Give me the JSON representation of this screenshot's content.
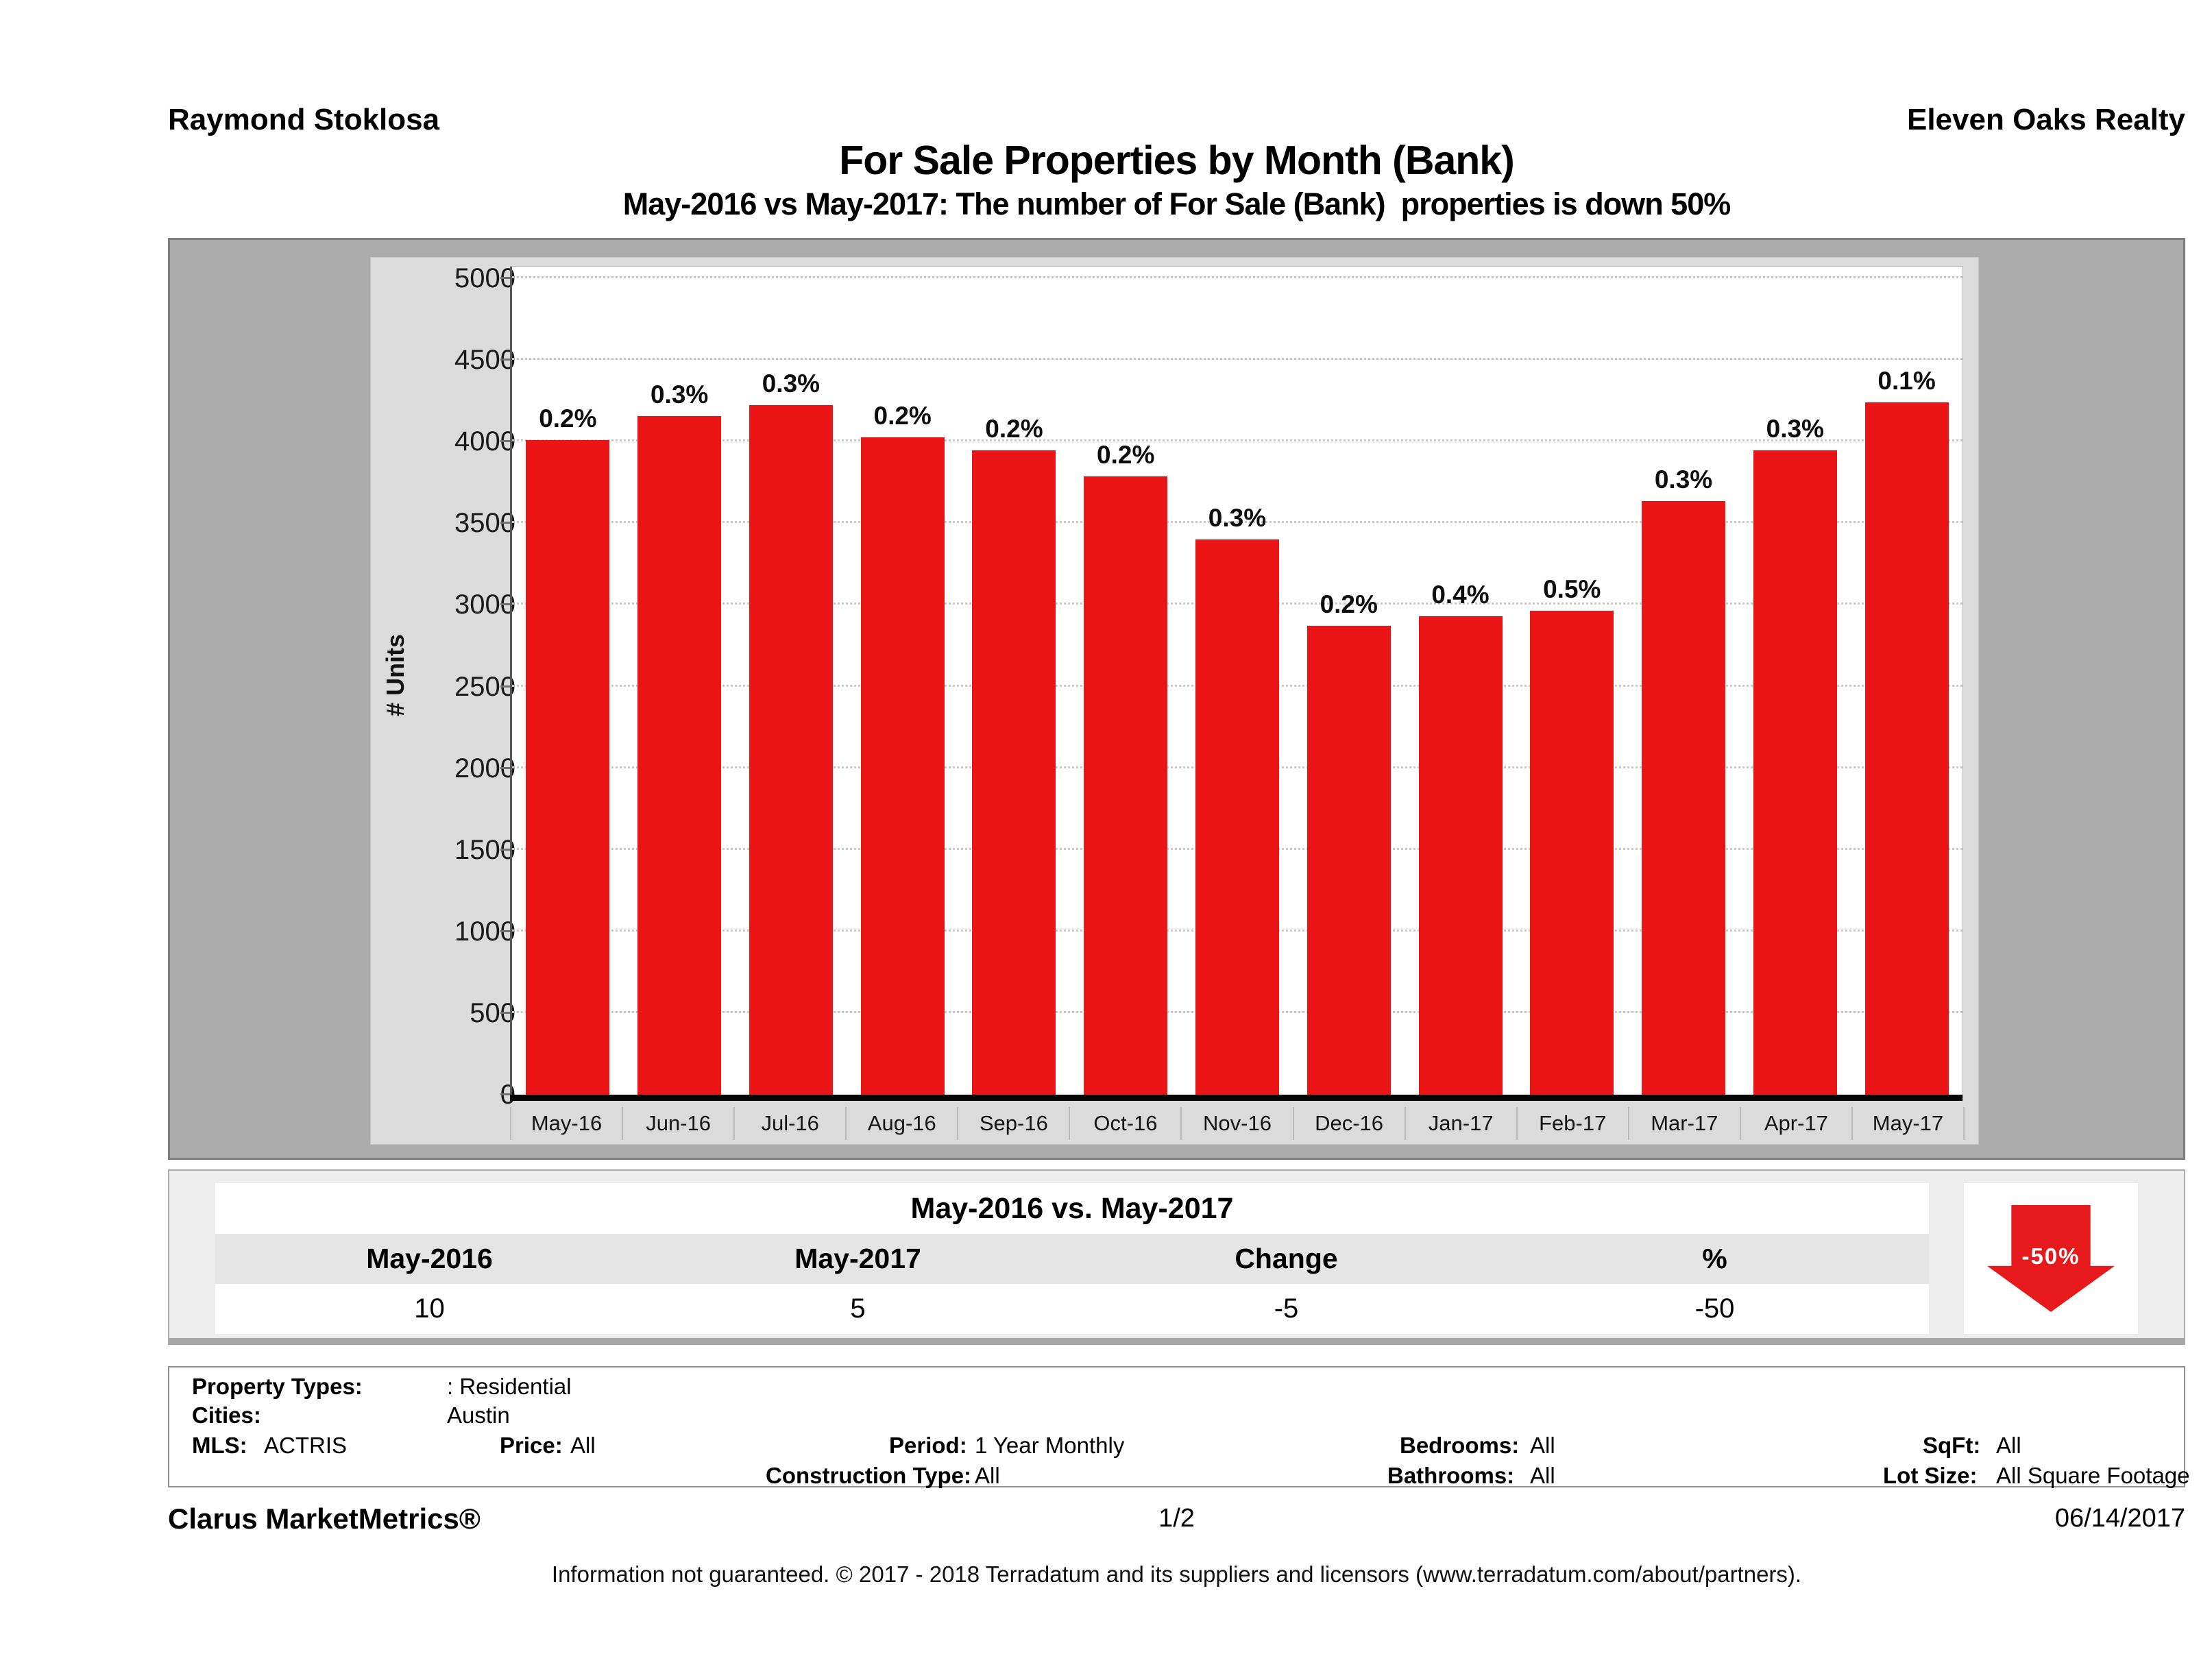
{
  "masthead": {
    "agent_name": "Raymond Stoklosa",
    "company_name": "Eleven Oaks Realty"
  },
  "report": {
    "title": "For Sale Properties by Month (Bank)",
    "subtitle": "May-2016 vs May-2017: The number of For Sale (Bank)  properties is down 50%"
  },
  "chart_data": {
    "type": "bar",
    "title": "For Sale Properties by Month (Bank)",
    "xlabel": "",
    "ylabel": "# Units",
    "ylim": [
      0,
      5000
    ],
    "ytick_interval": 500,
    "grid": "horizontal-dotted",
    "legend": "none",
    "bar_color": "#ec1515",
    "categories": [
      "May-16",
      "Jun-16",
      "Jul-16",
      "Aug-16",
      "Sep-16",
      "Oct-16",
      "Nov-16",
      "Dec-16",
      "Jan-17",
      "Feb-17",
      "Mar-17",
      "Apr-17",
      "May-17"
    ],
    "values": [
      4010,
      4155,
      4225,
      4025,
      3945,
      3785,
      3400,
      2870,
      2930,
      2965,
      3635,
      3945,
      4240
    ],
    "bar_labels": [
      "0.2%",
      "0.3%",
      "0.3%",
      "0.2%",
      "0.2%",
      "0.2%",
      "0.3%",
      "0.2%",
      "0.4%",
      "0.5%",
      "0.3%",
      "0.3%",
      "0.1%"
    ]
  },
  "comparison": {
    "title": "May-2016 vs. May-2017",
    "headers": [
      "May-2016",
      "May-2017",
      "Change",
      "%"
    ],
    "values": [
      "10",
      "5",
      "-5",
      "-50"
    ],
    "arrow_label": "-50%",
    "arrow_color": "#e61a1c"
  },
  "criteria": {
    "property_types_label": "Property Types:",
    "property_types_value": ": Residential",
    "cities_label": "Cities:",
    "cities_value": "Austin",
    "mls_label": "MLS:",
    "mls_value": "ACTRIS",
    "price_label": "Price:",
    "price_value": "All",
    "period_label": "Period:",
    "period_value": "1 Year Monthly",
    "bedrooms_label": "Bedrooms:",
    "bedrooms_value": "All",
    "sqft_label": "SqFt:",
    "sqft_value": "All",
    "construction_label": "Construction Type:",
    "construction_value": "All",
    "bathrooms_label": "Bathrooms:",
    "bathrooms_value": "All",
    "lot_size_label": "Lot Size:",
    "lot_size_value": "All Square Footage"
  },
  "footer": {
    "brand": "Clarus MarketMetrics®",
    "page_number": "1/2",
    "date": "06/14/2017",
    "disclaimer": "Information not guaranteed. © 2017 - 2018 Terradatum and its suppliers and licensors (www.terradatum.com/about/partners)."
  }
}
